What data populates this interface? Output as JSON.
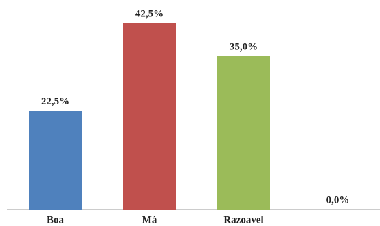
{
  "chart_data": {
    "type": "bar",
    "categories": [
      "Boa",
      "Má",
      "Razoavel",
      null
    ],
    "values": [
      22.5,
      42.5,
      35.0,
      0.0
    ],
    "value_labels": [
      "22,5%",
      "42,5%",
      "35,0%",
      "0,0%"
    ],
    "colors": [
      "#4f81bd",
      "#c0504d",
      "#9bbb59",
      "#8064a2"
    ]
  }
}
